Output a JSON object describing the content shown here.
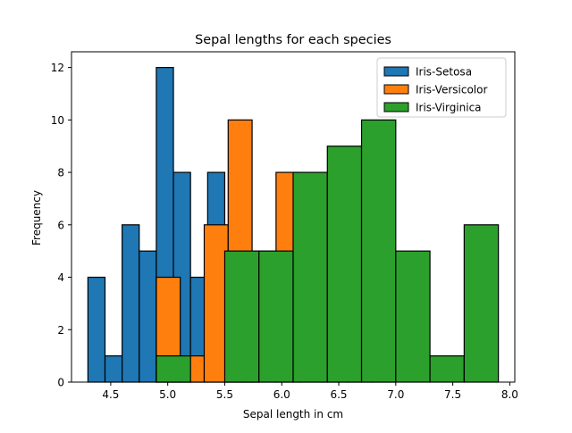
{
  "chart_data": {
    "type": "histogram",
    "title": "Sepal lengths for each species",
    "xlabel": "Sepal length in cm",
    "ylabel": "Frequency",
    "xlim": [
      4.156,
      8.044
    ],
    "ylim": [
      0,
      12.6
    ],
    "x_ticks": [
      {
        "value": 4.5,
        "label": "4.5"
      },
      {
        "value": 5.0,
        "label": "5.0"
      },
      {
        "value": 5.5,
        "label": "5.5"
      },
      {
        "value": 6.0,
        "label": "6.0"
      },
      {
        "value": 6.5,
        "label": "6.5"
      },
      {
        "value": 7.0,
        "label": "7.0"
      },
      {
        "value": 7.5,
        "label": "7.5"
      },
      {
        "value": 8.0,
        "label": "8.0"
      }
    ],
    "y_ticks": [
      {
        "value": 0,
        "label": "0"
      },
      {
        "value": 2,
        "label": "2"
      },
      {
        "value": 4,
        "label": "4"
      },
      {
        "value": 6,
        "label": "6"
      },
      {
        "value": 8,
        "label": "8"
      },
      {
        "value": 10,
        "label": "10"
      },
      {
        "value": 12,
        "label": "12"
      }
    ],
    "grid": false,
    "legend_position": "top-right",
    "series": [
      {
        "name": "Iris-Setosa",
        "color": "#1f77b4",
        "bins": [
          {
            "x0": 4.3,
            "x1": 4.45,
            "count": 4
          },
          {
            "x0": 4.45,
            "x1": 4.6,
            "count": 1
          },
          {
            "x0": 4.6,
            "x1": 4.75,
            "count": 6
          },
          {
            "x0": 4.75,
            "x1": 4.9,
            "count": 5
          },
          {
            "x0": 4.9,
            "x1": 5.05,
            "count": 12
          },
          {
            "x0": 5.05,
            "x1": 5.2,
            "count": 8
          },
          {
            "x0": 5.2,
            "x1": 5.35,
            "count": 4
          },
          {
            "x0": 5.35,
            "x1": 5.5,
            "count": 8
          },
          {
            "x0": 5.5,
            "x1": 5.65,
            "count": 1
          },
          {
            "x0": 5.65,
            "x1": 5.8,
            "count": 1
          }
        ]
      },
      {
        "name": "Iris-Versicolor",
        "color": "#ff7f0e",
        "bins": [
          {
            "x0": 4.9,
            "x1": 5.11,
            "count": 4
          },
          {
            "x0": 5.11,
            "x1": 5.32,
            "count": 1
          },
          {
            "x0": 5.32,
            "x1": 5.53,
            "count": 6
          },
          {
            "x0": 5.53,
            "x1": 5.74,
            "count": 10
          },
          {
            "x0": 5.74,
            "x1": 5.95,
            "count": 5
          },
          {
            "x0": 5.95,
            "x1": 6.16,
            "count": 8
          },
          {
            "x0": 6.16,
            "x1": 6.37,
            "count": 6
          },
          {
            "x0": 6.37,
            "x1": 6.58,
            "count": 3
          },
          {
            "x0": 6.58,
            "x1": 6.79,
            "count": 5
          },
          {
            "x0": 6.79,
            "x1": 7.0,
            "count": 2
          }
        ]
      },
      {
        "name": "Iris-Virginica",
        "color": "#2ca02c",
        "bins": [
          {
            "x0": 4.9,
            "x1": 5.2,
            "count": 1
          },
          {
            "x0": 5.2,
            "x1": 5.5,
            "count": 0
          },
          {
            "x0": 5.5,
            "x1": 5.8,
            "count": 5
          },
          {
            "x0": 5.8,
            "x1": 6.1,
            "count": 5
          },
          {
            "x0": 6.1,
            "x1": 6.4,
            "count": 8
          },
          {
            "x0": 6.4,
            "x1": 6.7,
            "count": 9
          },
          {
            "x0": 6.7,
            "x1": 7.0,
            "count": 10
          },
          {
            "x0": 7.0,
            "x1": 7.3,
            "count": 5
          },
          {
            "x0": 7.3,
            "x1": 7.6,
            "count": 1
          },
          {
            "x0": 7.6,
            "x1": 7.9,
            "count": 6
          }
        ]
      }
    ]
  }
}
